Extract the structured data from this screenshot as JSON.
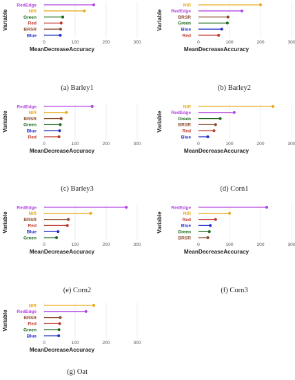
{
  "figure": {
    "axis_colors": {
      "NIR": "#e6ac1e",
      "RedEdge": "#b044e0",
      "Green": "#1e6b1e",
      "BRSR": "#8b4a2b",
      "Red": "#c0392b",
      "Blue": "#2530c8"
    }
  },
  "chart_data": [
    {
      "type": "lollipop",
      "caption": "(a)  Barley1",
      "xlabel": "MeanDecreaseAccuracy",
      "ylabel": "Variable",
      "xlim": [
        -20,
        300
      ],
      "xticks": [
        "0",
        "100",
        "200",
        "300"
      ],
      "categories": [
        "RedEdge",
        "NIR",
        "Green",
        "Red",
        "BRSR",
        "Blue"
      ],
      "values": [
        160,
        130,
        60,
        55,
        53,
        52
      ]
    },
    {
      "type": "lollipop",
      "caption": "(b)  Barley2",
      "xlabel": "MeanDecreaseAccuracy",
      "ylabel": "Variable",
      "xlim": [
        -20,
        300
      ],
      "xticks": [
        "0",
        "100",
        "200",
        "300"
      ],
      "categories": [
        "NIR",
        "RedEdge",
        "BRSR",
        "Green",
        "Blue",
        "Red"
      ],
      "values": [
        200,
        140,
        95,
        93,
        75,
        65
      ]
    },
    {
      "type": "lollipop",
      "caption": "(c)  Barley3",
      "xlabel": "MeanDecreaseAccuracy",
      "ylabel": "Variable",
      "xlim": [
        -20,
        300
      ],
      "xticks": [
        "0",
        "100",
        "200",
        "300"
      ],
      "categories": [
        "RedEdge",
        "NIR",
        "BRSR",
        "Green",
        "Blue",
        "Red"
      ],
      "values": [
        155,
        72,
        55,
        52,
        50,
        48
      ]
    },
    {
      "type": "lollipop",
      "caption": "(d)  Corn1",
      "xlabel": "MeanDecreaseAccuracy",
      "ylabel": "Variable",
      "xlim": [
        -20,
        300
      ],
      "xticks": [
        "0",
        "100",
        "200",
        "300"
      ],
      "categories": [
        "NIR",
        "RedEdge",
        "Green",
        "BRSR",
        "Red",
        "Blue"
      ],
      "values": [
        240,
        115,
        70,
        55,
        50,
        30
      ]
    },
    {
      "type": "lollipop",
      "caption": "(e)  Corn2",
      "xlabel": "MeanDecreaseAccuracy",
      "ylabel": "Variable",
      "xlim": [
        -20,
        300
      ],
      "xticks": [
        "0",
        "100",
        "200",
        "300"
      ],
      "categories": [
        "RedEdge",
        "NIR",
        "BRSR",
        "Red",
        "Blue",
        "Green"
      ],
      "values": [
        265,
        150,
        78,
        75,
        45,
        40
      ]
    },
    {
      "type": "lollipop",
      "caption": "(f)  Corn3",
      "xlabel": "MeanDecreaseAccuracy",
      "ylabel": "Variable",
      "xlim": [
        -20,
        300
      ],
      "xticks": [
        "0",
        "100",
        "200",
        "300"
      ],
      "categories": [
        "RedEdge",
        "NIR",
        "Red",
        "Blue",
        "Green",
        "BRSR"
      ],
      "values": [
        220,
        100,
        55,
        38,
        35,
        30
      ]
    },
    {
      "type": "lollipop",
      "caption": "(g)  Oat",
      "xlabel": "MeanDecreaseAccuracy",
      "ylabel": "Variable",
      "xlim": [
        -20,
        300
      ],
      "xticks": [
        "0",
        "100",
        "200",
        "300"
      ],
      "categories": [
        "NIR",
        "RedEdge",
        "BRSR",
        "Red",
        "Green",
        "Blue"
      ],
      "values": [
        160,
        135,
        52,
        50,
        48,
        47
      ]
    }
  ]
}
